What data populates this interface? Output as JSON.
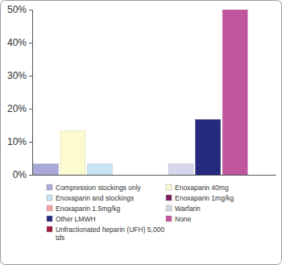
{
  "chart_data": {
    "type": "bar",
    "categories": [
      "Compression stockings only",
      "Enoxaparin 40mg",
      "Enoxaparin and stockings",
      "Enoxaparin 1mg/kg",
      "Enoxaparin 1.5mg/kg",
      "Warfarin",
      "Other LMWH",
      "None",
      "Unfractionated heparin (UFH) 5,000 tds"
    ],
    "values": [
      3.3,
      13.3,
      3.3,
      0,
      0,
      3.3,
      16.7,
      50,
      0
    ],
    "colors": [
      "#a9a9d8",
      "#fbfbcf",
      "#c8e4f2",
      "#7b1f5c",
      "#f2a3a0",
      "#d6d6ec",
      "#262a7e",
      "#c2569e",
      "#a41d3f"
    ],
    "ylim": [
      0,
      50
    ],
    "yticks": [
      {
        "value": 0,
        "label": "0%"
      },
      {
        "value": 10,
        "label": "10%"
      },
      {
        "value": 20,
        "label": "20%"
      },
      {
        "value": 30,
        "label": "30%"
      },
      {
        "value": 40,
        "label": "40%"
      },
      {
        "value": 50,
        "label": "50%"
      }
    ],
    "grid": false,
    "legend": "bottom",
    "tick_labels": "y"
  }
}
